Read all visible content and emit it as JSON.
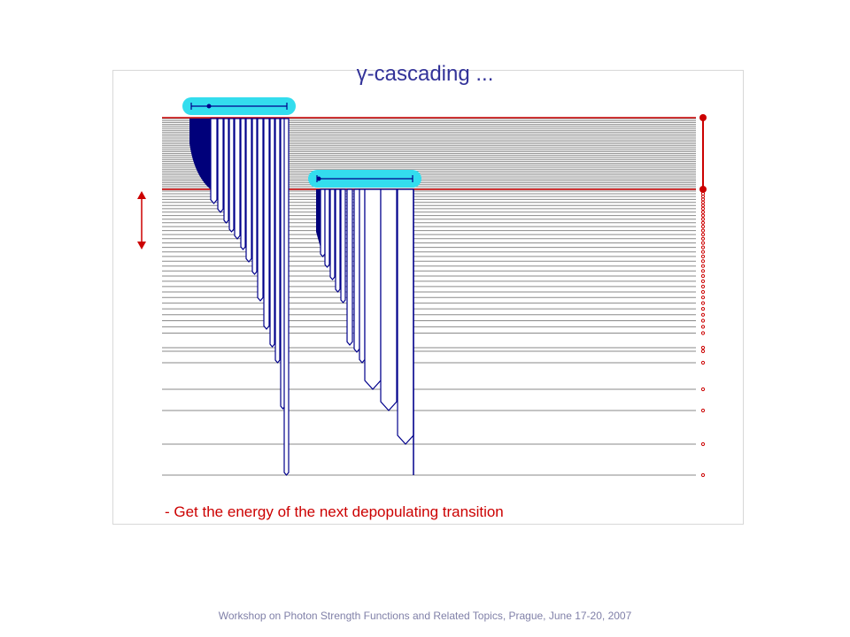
{
  "slide": {
    "title": "γ-cascading ...",
    "caption": "- Get the energy of the next depopulating transition",
    "footer": "Workshop on Photon Strength Functions and Related Topics, Prague, June 17-20, 2007"
  },
  "colors": {
    "level_line": "#8a8a8a",
    "boundary_line": "#cc0000",
    "transition_outline": "#00008b",
    "transition_fill": "#ffffff",
    "cascade_fill": "#00007a",
    "highlight": "#33ddee",
    "marker": "#cc0000",
    "text_title": "#333399",
    "text_caption": "#cc0000",
    "text_footer": "#8080a8"
  }
}
